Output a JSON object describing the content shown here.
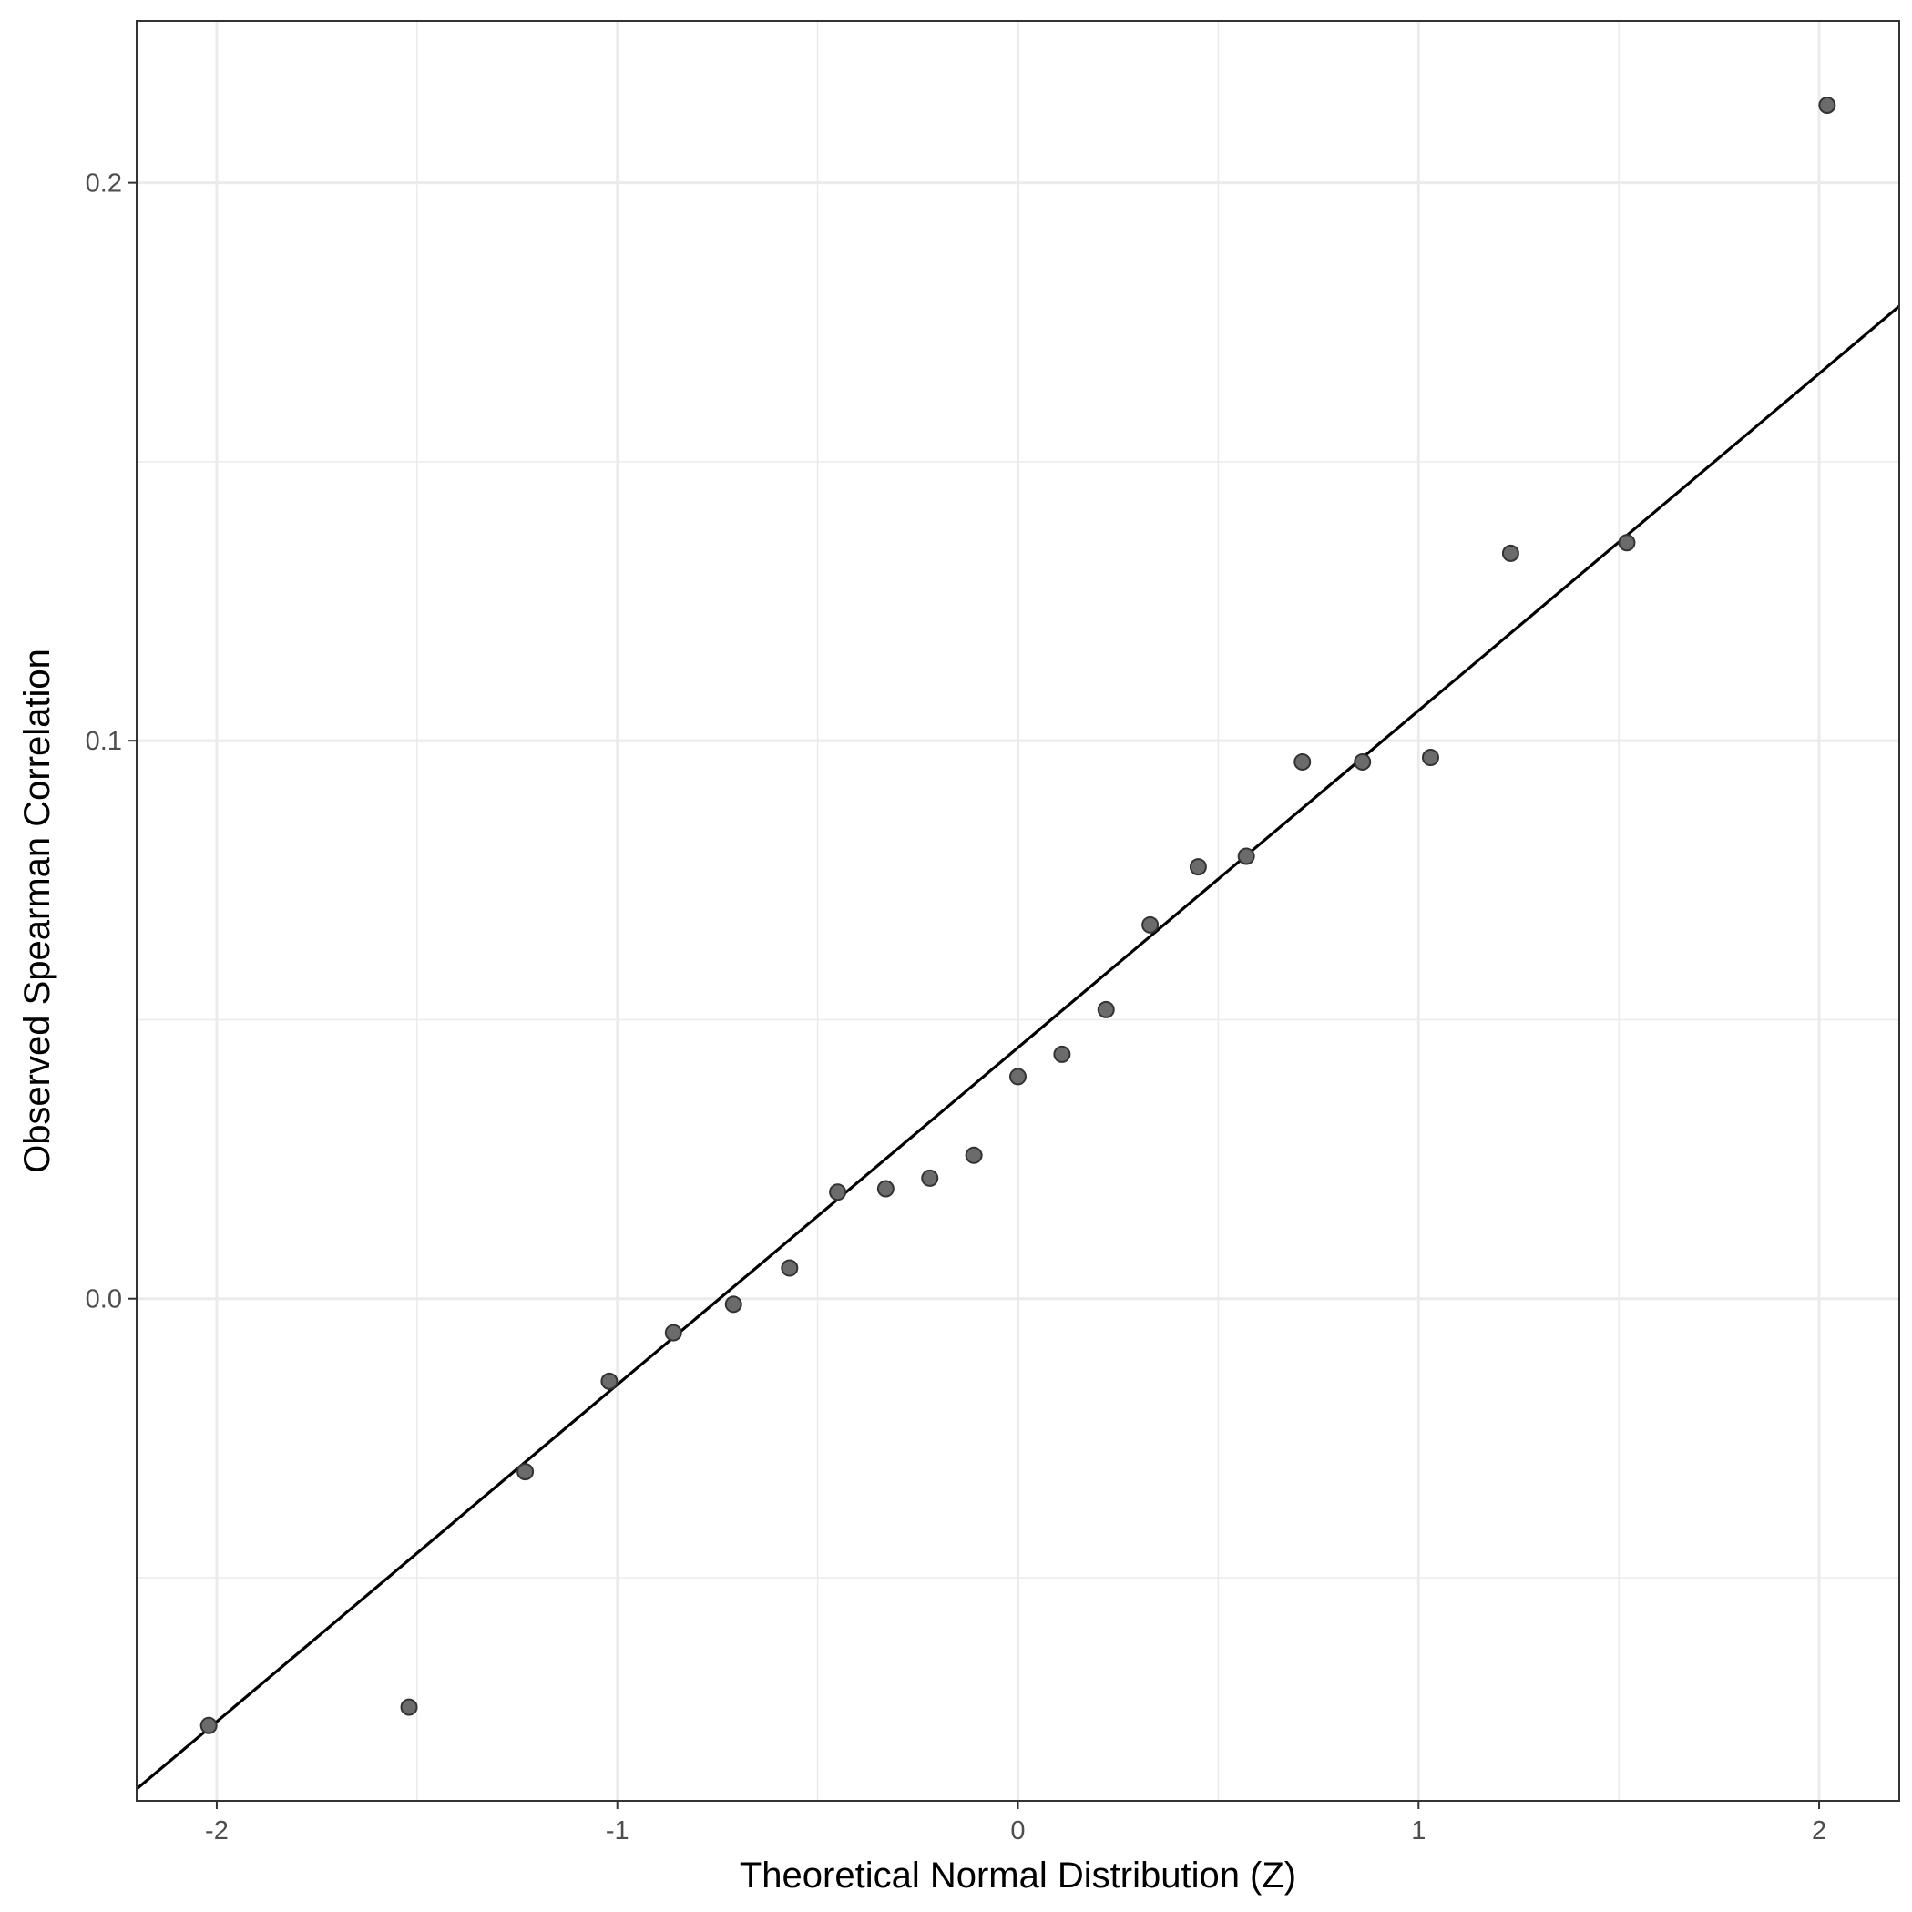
{
  "chart_data": {
    "type": "scatter",
    "title": "",
    "xlabel": "Theoretical Normal Distribution (Z)",
    "ylabel": "Observed Spearman Correlation",
    "xlim": [
      -2.2,
      2.2
    ],
    "ylim": [
      -0.09,
      0.229
    ],
    "x_ticks": [
      -2,
      -1,
      0,
      1,
      2
    ],
    "x_tick_labels": [
      "-2",
      "-1",
      "0",
      "1",
      "2"
    ],
    "y_ticks": [
      0.0,
      0.1,
      0.2
    ],
    "y_tick_labels": [
      "0.0",
      "0.1",
      "0.2"
    ],
    "grid": true,
    "legend": "none",
    "series": [
      {
        "type": "points",
        "x": [
          -2.02,
          -1.52,
          -1.23,
          -1.02,
          -0.86,
          -0.71,
          -0.57,
          -0.45,
          -0.33,
          -0.22,
          -0.11,
          0.0,
          0.11,
          0.22,
          0.33,
          0.45,
          0.57,
          0.71,
          0.86,
          1.03,
          1.23,
          1.52,
          2.02
        ],
        "y": [
          -0.0765,
          -0.0732,
          -0.031,
          -0.0148,
          -0.0061,
          -0.001,
          0.0055,
          0.0191,
          0.0197,
          0.0216,
          0.0257,
          0.0398,
          0.0438,
          0.0518,
          0.067,
          0.0774,
          0.0793,
          0.0962,
          0.0962,
          0.097,
          0.1336,
          0.1355,
          0.2139
        ]
      },
      {
        "type": "reference-line",
        "slope": 0.0604,
        "intercept": 0.045
      }
    ],
    "colors": {
      "point_fill": "#6b6b6b",
      "point_stroke": "#333333",
      "line": "#000000",
      "grid": "#ebebeb",
      "panel_border": "#333333"
    }
  }
}
